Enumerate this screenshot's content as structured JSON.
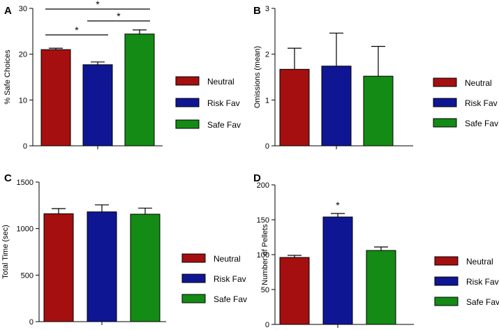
{
  "legend_entries": [
    {
      "label": "Neutral",
      "color": "#a50f0f"
    },
    {
      "label": "Risk Fav",
      "color": "#0f1694"
    },
    {
      "label": "Safe Fav",
      "color": "#148b14"
    }
  ],
  "chart_data": [
    {
      "panel": "A",
      "type": "bar",
      "categories": [
        "Neutral",
        "Risk Fav",
        "Safe Fav"
      ],
      "values": [
        21.0,
        17.7,
        24.4
      ],
      "errors": [
        0.3,
        0.6,
        0.9
      ],
      "ylabel": "% Safe Choices",
      "xlabel": "",
      "ylim": [
        0,
        30
      ],
      "yticks": [
        0,
        10,
        20,
        30
      ],
      "grid": false,
      "legend": "right",
      "significance": [
        {
          "from": 0,
          "to": 2,
          "label": "*"
        },
        {
          "from": 1,
          "to": 2,
          "label": "*"
        },
        {
          "from": 0,
          "to": 1,
          "label": "*"
        }
      ]
    },
    {
      "panel": "B",
      "type": "bar",
      "categories": [
        "Neutral",
        "Risk Fav",
        "Safe Fav"
      ],
      "values": [
        1.67,
        1.74,
        1.52
      ],
      "errors": [
        0.46,
        0.72,
        0.65
      ],
      "ylabel": "Omissions (mean)",
      "xlabel": "",
      "ylim": [
        0,
        3
      ],
      "yticks": [
        0,
        1,
        2,
        3
      ],
      "grid": false,
      "legend": "right",
      "significance": []
    },
    {
      "panel": "C",
      "type": "bar",
      "categories": [
        "Neutral",
        "Risk Fav",
        "Safe Fav"
      ],
      "values": [
        1160,
        1180,
        1155
      ],
      "errors": [
        55,
        75,
        65
      ],
      "ylabel": "Total Time (sec)",
      "xlabel": "",
      "ylim": [
        0,
        1500
      ],
      "yticks": [
        0,
        500,
        1000,
        1500
      ],
      "grid": false,
      "legend": "right",
      "significance": []
    },
    {
      "panel": "D",
      "type": "bar",
      "categories": [
        "Neutral",
        "Risk Fav",
        "Safe Fav"
      ],
      "values": [
        96,
        154,
        106
      ],
      "errors": [
        3,
        5,
        5
      ],
      "ylabel": "Number of Pellets",
      "xlabel": "",
      "ylim": [
        0,
        200
      ],
      "yticks": [
        0,
        50,
        100,
        150,
        200
      ],
      "grid": false,
      "legend": "right",
      "significance": [
        {
          "bar": 1,
          "label": "*"
        }
      ]
    }
  ]
}
